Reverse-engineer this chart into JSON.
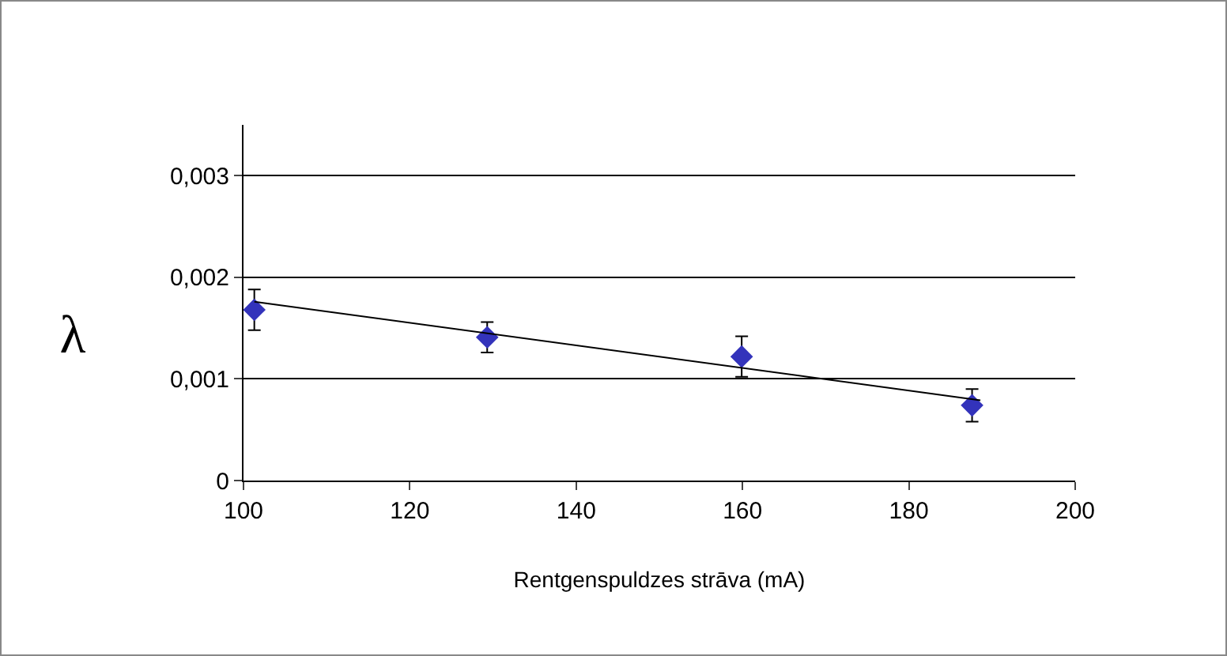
{
  "chart_data": {
    "type": "scatter",
    "xlabel": "Rentgenspuldzes strāva (mA)",
    "ylabel": "λ",
    "x": [
      101.3,
      129.3,
      159.9,
      187.6
    ],
    "series": [
      {
        "color": "#3333bb",
        "marker": "diamond",
        "values": [
          0.00168,
          0.00141,
          0.00122,
          0.00074
        ],
        "errors": [
          0.0002,
          0.00015,
          0.0002,
          0.00016
        ]
      },
      {
        "type": "line",
        "color": "#000000",
        "marker": "none",
        "x": [
          101.3,
          188.6
        ],
        "values": [
          0.00176,
          0.00079
        ]
      }
    ],
    "xlim": [
      100,
      200
    ],
    "xticks": [
      100,
      120,
      140,
      160,
      180,
      200
    ],
    "ylim": [
      0,
      0.0035
    ],
    "yticks": [
      {
        "value": 0,
        "label": "0"
      },
      {
        "value": 0.001,
        "label": "0,001"
      },
      {
        "value": 0.002,
        "label": "0,002"
      },
      {
        "value": 0.003,
        "label": "0,003"
      }
    ],
    "grid": "y"
  }
}
